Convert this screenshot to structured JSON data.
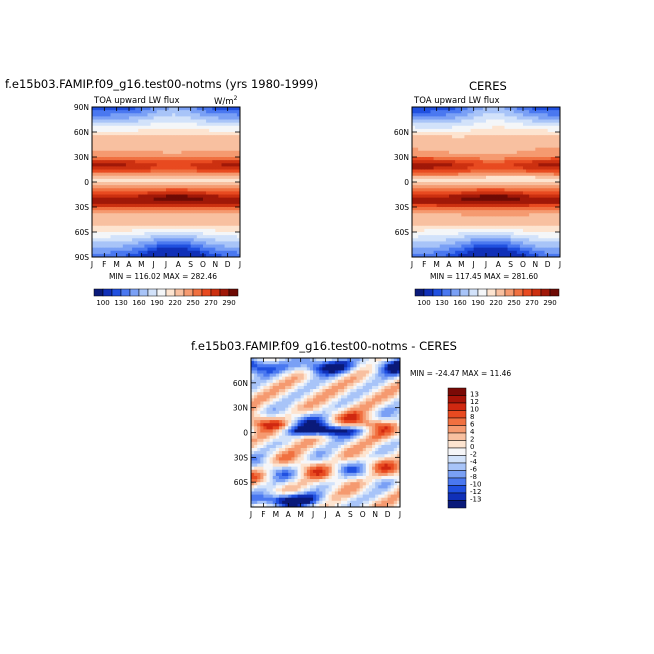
{
  "chart_data": [
    {
      "type": "heatmap",
      "title": "f.e15b03.FAMIP.f09_g16.test00-notms (yrs 1980-1999)",
      "subtitle_left": "TOA upward LW flux",
      "units": "W/m",
      "units_exp": "2",
      "x_ticks": [
        "J",
        "F",
        "M",
        "A",
        "M",
        "J",
        "J",
        "A",
        "S",
        "O",
        "N",
        "D",
        "J"
      ],
      "y_ticks": [
        "90N",
        "60N",
        "30N",
        "0",
        "30S",
        "60S",
        "90S"
      ],
      "stats": "MIN = 116.02  MAX = 282.46",
      "min": 116.02,
      "max": 282.46
    },
    {
      "type": "heatmap",
      "title": "CERES",
      "subtitle_left": "TOA upward LW flux",
      "x_ticks": [
        "J",
        "F",
        "M",
        "A",
        "M",
        "J",
        "J",
        "A",
        "S",
        "O",
        "N",
        "D",
        "J"
      ],
      "y_ticks": [
        "60N",
        "30N",
        "0",
        "30S",
        "60S"
      ],
      "stats": "MIN = 117.45  MAX = 281.60",
      "min": 117.45,
      "max": 281.6
    },
    {
      "type": "heatmap",
      "title": "f.e15b03.FAMIP.f09_g16.test00-notms - CERES",
      "x_ticks": [
        "J",
        "F",
        "M",
        "A",
        "M",
        "J",
        "J",
        "A",
        "S",
        "O",
        "N",
        "D",
        "J"
      ],
      "y_ticks": [
        "60N",
        "30N",
        "0",
        "30S",
        "60S"
      ],
      "stats": "MIN = -24.47  MAX =  11.46",
      "min": -24.47,
      "max": 11.46
    }
  ],
  "colorbar_abs": {
    "labels": [
      "100",
      "130",
      "160",
      "190",
      "220",
      "250",
      "270",
      "290"
    ],
    "colors": [
      "#0a1a7a",
      "#1030b8",
      "#2050e0",
      "#4a78f0",
      "#7aa0f5",
      "#a8c4f8",
      "#d2e2fa",
      "#f4f6f8",
      "#fde4d0",
      "#f8c0a0",
      "#f59a70",
      "#f07040",
      "#e84a20",
      "#cc3010",
      "#a01808",
      "#6e0a04"
    ]
  },
  "colorbar_diff": {
    "labels": [
      "13",
      "12",
      "10",
      "8",
      "6",
      "4",
      "2",
      "0",
      "-2",
      "-4",
      "-6",
      "-8",
      "-10",
      "-12",
      "-13"
    ],
    "colors": [
      "#7a0a06",
      "#a81408",
      "#d02810",
      "#e84a20",
      "#f07040",
      "#f59a70",
      "#f8c0a0",
      "#fde4d0",
      "#f6f6f8",
      "#d2e2fa",
      "#a8c4f8",
      "#7aa0f5",
      "#4a78f0",
      "#2050e0",
      "#1030b8",
      "#0a1a7a"
    ]
  }
}
